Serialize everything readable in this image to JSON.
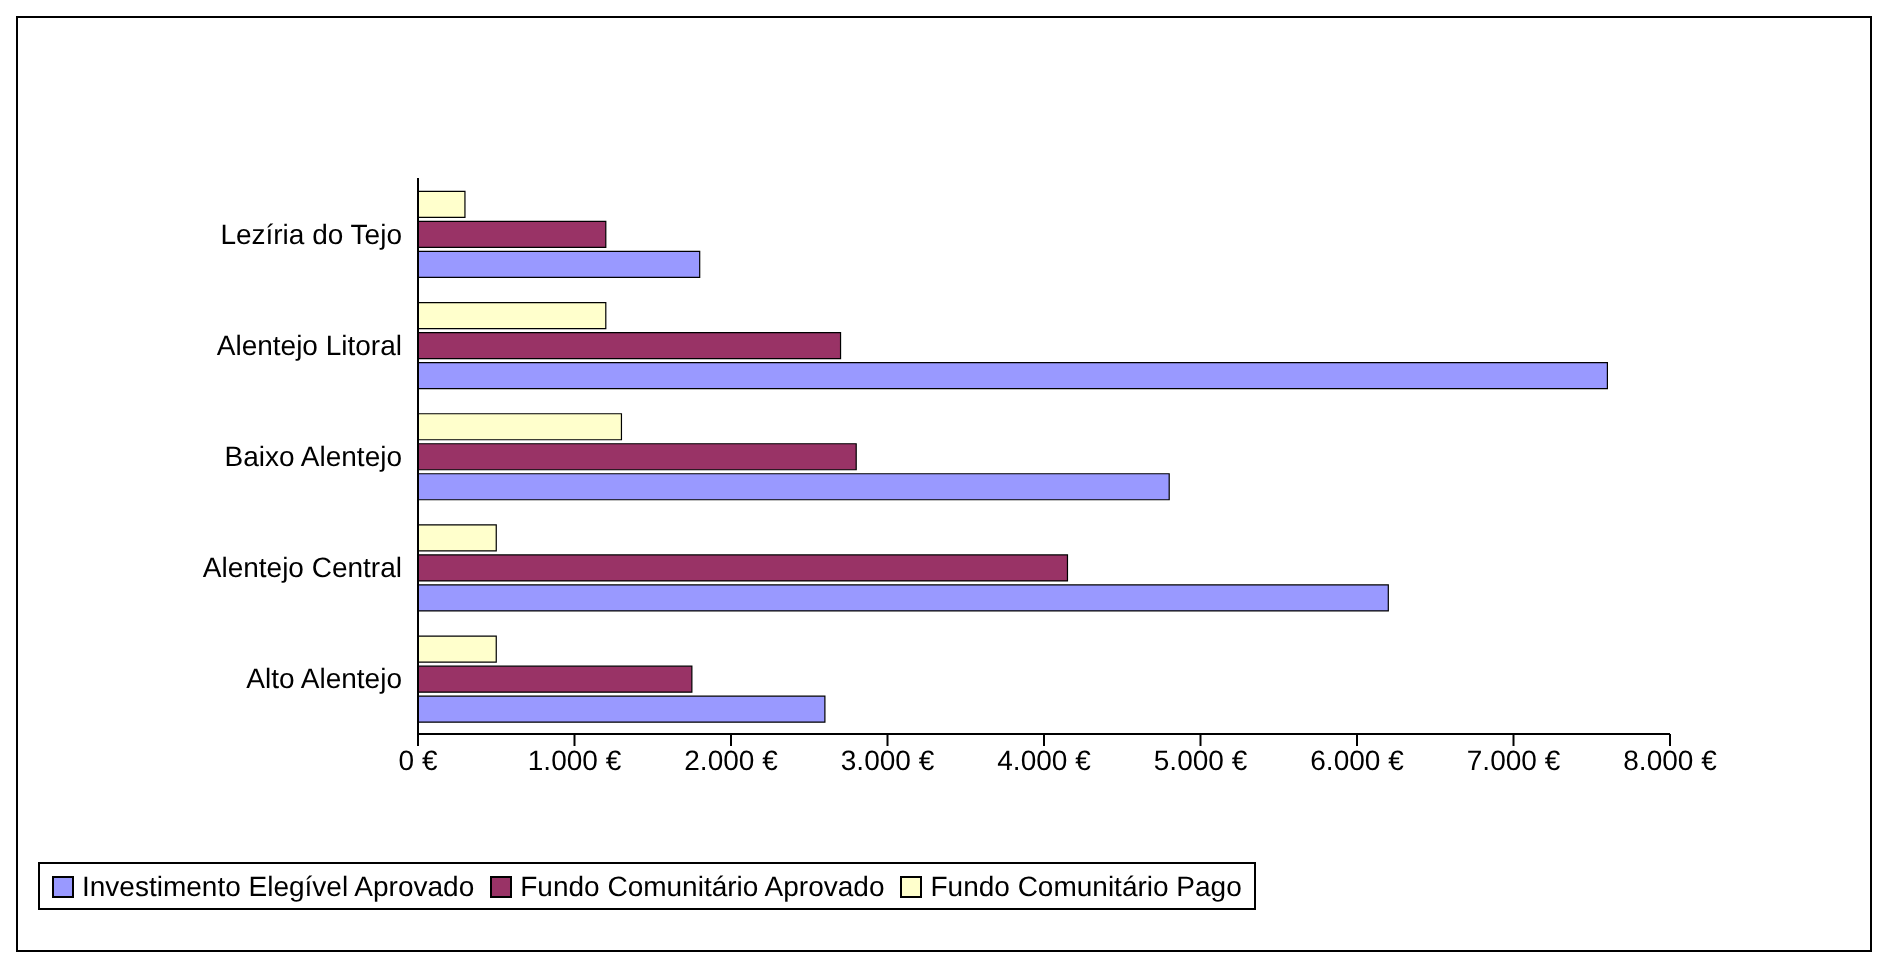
{
  "chart_data": {
    "type": "bar",
    "orientation": "horizontal",
    "categories": [
      "Lezíria do Tejo",
      "Alentejo Litoral",
      "Baixo Alentejo",
      "Alentejo Central",
      "Alto Alentejo"
    ],
    "series": [
      {
        "name": "Investimento Elegível Aprovado",
        "color": "#9999ff",
        "values": [
          1800,
          7600,
          4800,
          6200,
          2600
        ]
      },
      {
        "name": "Fundo Comunitário Aprovado",
        "color": "#993366",
        "values": [
          1200,
          2700,
          2800,
          4150,
          1750
        ]
      },
      {
        "name": "Fundo Comunitário Pago",
        "color": "#ffffcc",
        "values": [
          300,
          1200,
          1300,
          500,
          500
        ]
      }
    ],
    "xlim": [
      0,
      8000
    ],
    "xticks": [
      {
        "value": 0,
        "label": "0 €"
      },
      {
        "value": 1000,
        "label": "1.000 €"
      },
      {
        "value": 2000,
        "label": "2.000 €"
      },
      {
        "value": 3000,
        "label": "3.000 €"
      },
      {
        "value": 4000,
        "label": "4.000 €"
      },
      {
        "value": 5000,
        "label": "5.000 €"
      },
      {
        "value": 6000,
        "label": "6.000 €"
      },
      {
        "value": 7000,
        "label": "7.000 €"
      },
      {
        "value": 8000,
        "label": "8.000 €"
      }
    ],
    "grid": false,
    "legend": "bottom"
  }
}
